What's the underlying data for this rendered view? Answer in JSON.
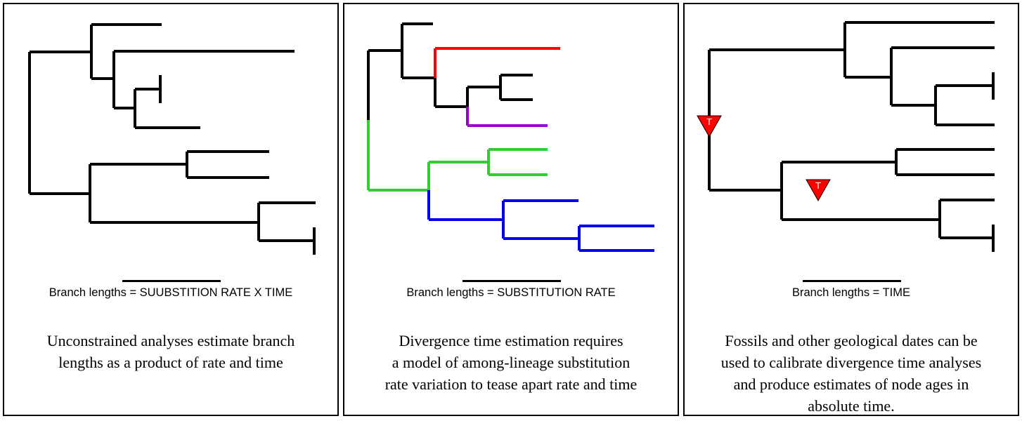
{
  "colors": {
    "default_branch": "#000000",
    "red": "#ff0000",
    "purple": "#9900cc",
    "green": "#33cc33",
    "blue": "#0000ee",
    "calibration_marker": "#ff0000"
  },
  "panels": [
    {
      "scale_label": "Branch lengths = SUUBSTITION RATE X TIME",
      "caption_lines": [
        "Unconstrained analyses estimate branch",
        "lengths as a product of rate and time"
      ]
    },
    {
      "scale_label": "Branch lengths = SUBSTITUTION RATE",
      "caption_lines": [
        "Divergence time estimation requires",
        "a model of among-lineage substitution",
        "rate variation to tease apart rate and time"
      ]
    },
    {
      "scale_label": "Branch lengths = TIME",
      "caption_lines": [
        "Fossils and other geological dates can be",
        "used to calibrate divergence time analyses",
        "and produce estimates of node ages in",
        "absolute time."
      ],
      "calibration_labels": [
        "T",
        "T"
      ]
    }
  ]
}
